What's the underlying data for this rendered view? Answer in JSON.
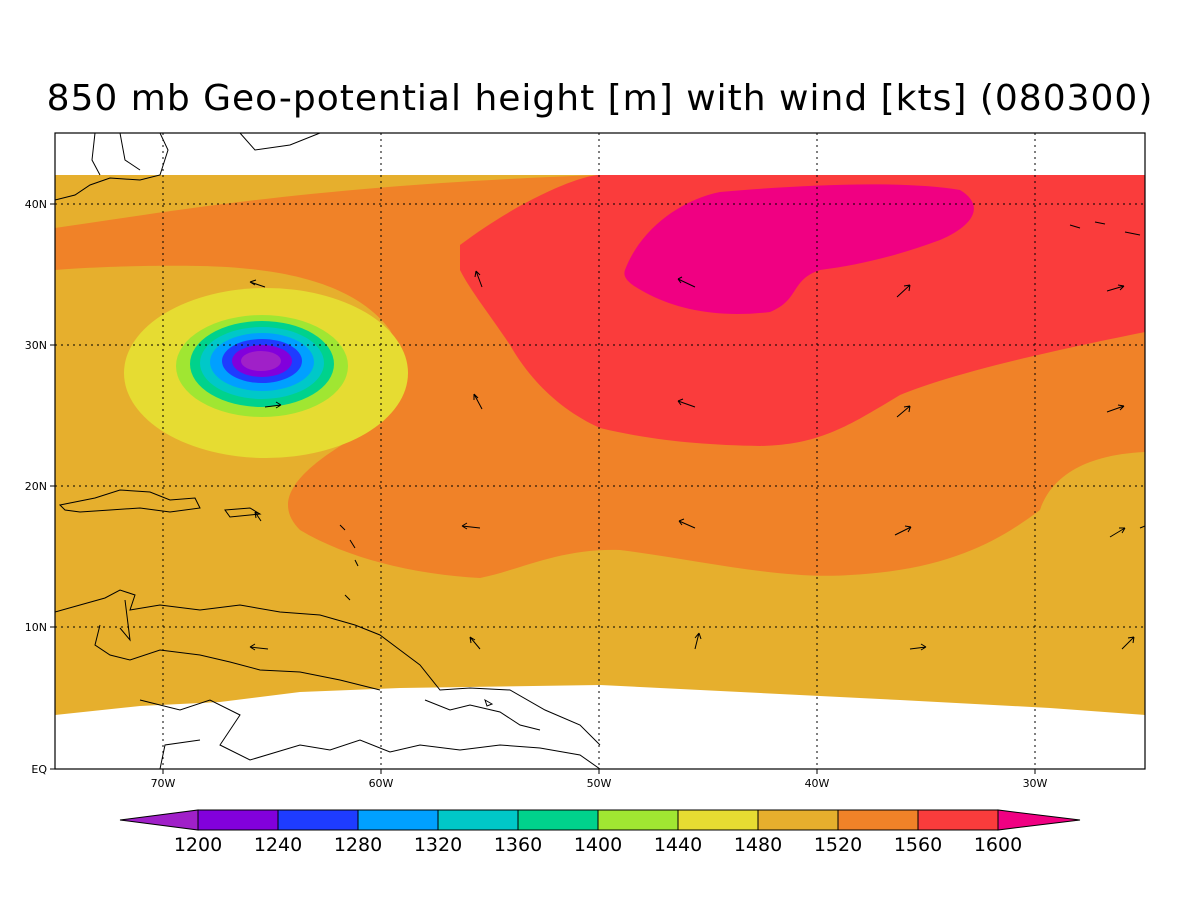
{
  "title": "850 mb Geo-potential height [m] with wind [kts] (080300)",
  "map": {
    "lat_labels": [
      "40N",
      "30N",
      "20N",
      "10N",
      "EQ"
    ],
    "lon_labels": [
      "70W",
      "60W",
      "50W",
      "40W",
      "30W"
    ]
  },
  "colorbar": {
    "levels": [
      "1200",
      "1240",
      "1280",
      "1320",
      "1360",
      "1400",
      "1440",
      "1480",
      "1520",
      "1560",
      "1600"
    ],
    "colors": [
      "#a020c8",
      "#8200dc",
      "#1e3cff",
      "#00a0ff",
      "#00c8c8",
      "#00d28c",
      "#a0e632",
      "#e6dc32",
      "#e6af2d",
      "#f08228",
      "#fa3c3c",
      "#f00082"
    ]
  },
  "colors": {
    "background": "#ffffff",
    "land_outline": "#000000"
  }
}
